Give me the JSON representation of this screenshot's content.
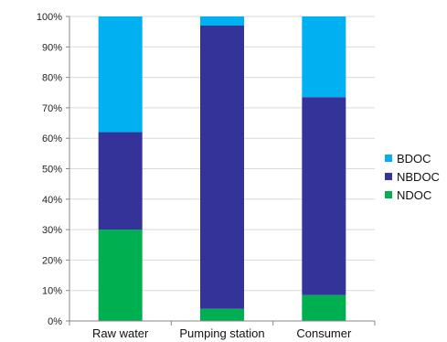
{
  "chart_data": {
    "type": "bar",
    "stacked": true,
    "categories": [
      "Raw water",
      "Pumping station",
      "Consumer"
    ],
    "series": [
      {
        "name": "NDOC",
        "color": "#00b050",
        "values": [
          30,
          4,
          8.5
        ]
      },
      {
        "name": "NBDOC",
        "color": "#333399",
        "values": [
          32,
          93,
          65
        ]
      },
      {
        "name": "BDOC",
        "color": "#00b0f0",
        "values": [
          38,
          3,
          26.5
        ]
      }
    ],
    "ylim": [
      0,
      100
    ],
    "yticks": [
      "0%",
      "10%",
      "20%",
      "30%",
      "40%",
      "50%",
      "60%",
      "70%",
      "80%",
      "90%",
      "100%"
    ],
    "grid": true,
    "legend": {
      "position": "right",
      "entries": [
        {
          "label": "BDOC",
          "color": "#00b0f0"
        },
        {
          "label": "NBDOC",
          "color": "#333399"
        },
        {
          "label": "NDOC",
          "color": "#00b050"
        }
      ]
    }
  }
}
